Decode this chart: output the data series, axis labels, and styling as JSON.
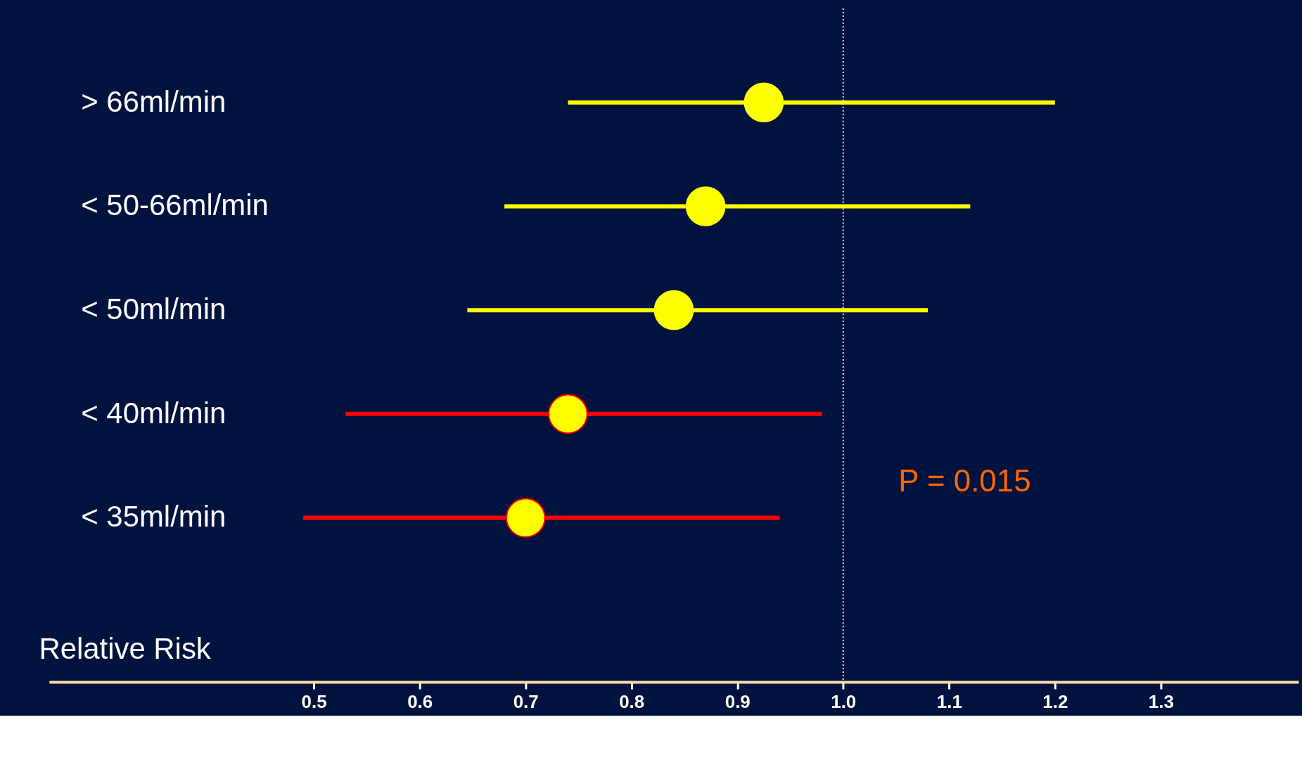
{
  "chart_data": {
    "type": "scatter",
    "xlabel": "Relative Risk",
    "categories": [
      "> 66ml/min",
      "< 50-66ml/min",
      "< 50ml/min",
      "< 40ml/min",
      "< 35ml/min"
    ],
    "series": [
      {
        "color": "#ffff00",
        "values": [
          0.925,
          0.87,
          0.84,
          null,
          null
        ],
        "errors": [
          [
            0.74,
            1.2
          ],
          [
            0.68,
            1.12
          ],
          [
            0.645,
            1.08
          ],
          null,
          null
        ]
      },
      {
        "color": "#ff0000",
        "values": [
          null,
          null,
          null,
          0.74,
          0.7
        ],
        "errors": [
          null,
          null,
          null,
          [
            0.53,
            0.98
          ],
          [
            0.49,
            0.94
          ]
        ]
      }
    ],
    "orientation": "horizontal",
    "xlim": [
      0.25,
      1.43
    ],
    "xticks": [
      0.5,
      0.6,
      0.7,
      0.8,
      0.9,
      {
        "value": 1.0,
        "label": "1.0"
      },
      1.1,
      1.2,
      1.3
    ],
    "ref_lines": [
      {
        "axis": "x",
        "value": 1.0,
        "color": "#ffe4b5",
        "line_style": "dotted"
      }
    ],
    "annotations": [
      "P = 0.015"
    ],
    "marker": "circle"
  }
}
